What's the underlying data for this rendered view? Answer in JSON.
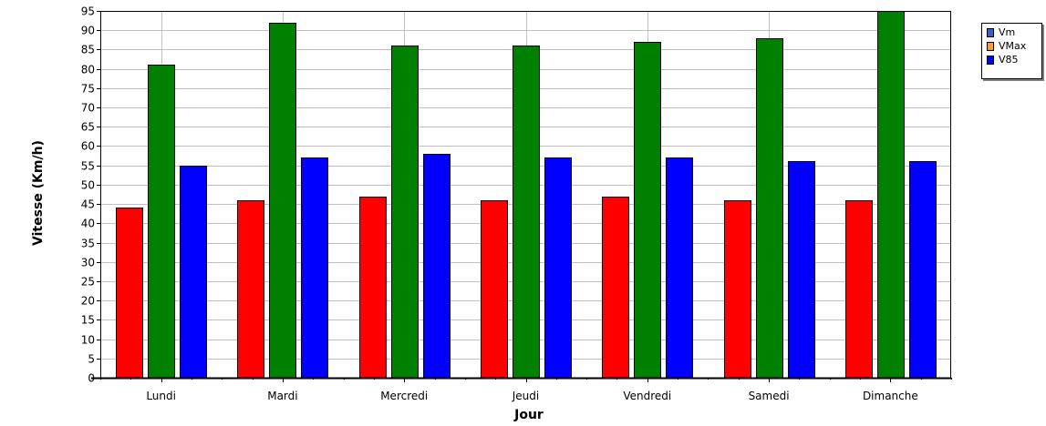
{
  "chart_data": {
    "type": "bar",
    "categories": [
      "Lundi",
      "Mardi",
      "Mercredi",
      "Jeudi",
      "Vendredi",
      "Samedi",
      "Dimanche"
    ],
    "series": [
      {
        "name": "Vm",
        "values": [
          44,
          46,
          47,
          46,
          47,
          46,
          46
        ],
        "bar_color": "#ff0000"
      },
      {
        "name": "VMax",
        "values": [
          81,
          92,
          86,
          86,
          87,
          88,
          95
        ],
        "bar_color": "#008000"
      },
      {
        "name": "V85",
        "values": [
          55,
          57,
          58,
          57,
          57,
          56,
          56
        ],
        "bar_color": "#0000ff"
      }
    ],
    "legend_colors": [
      "#3a5fcd",
      "#ff9933",
      "#0000ff"
    ],
    "xlabel": "Jour",
    "ylabel": "Vitesse (Km/h)",
    "ylim": [
      0,
      95
    ],
    "ytick_step": 5,
    "grid": true,
    "legend_position": "top-right"
  }
}
